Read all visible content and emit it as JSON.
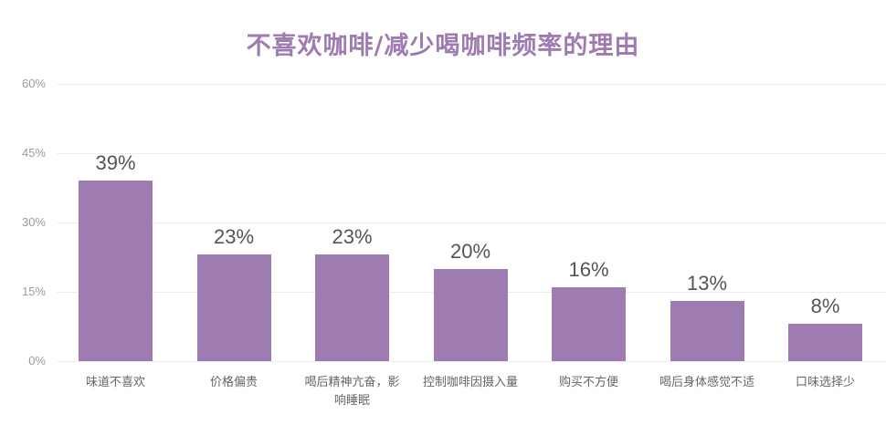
{
  "chart_data": {
    "type": "bar",
    "title": "不喜欢咖啡/减少喝咖啡频率的理由",
    "xlabel": "",
    "ylabel": "",
    "ylim": [
      0,
      60
    ],
    "yticks": [
      "0%",
      "15%",
      "30%",
      "45%",
      "60%"
    ],
    "grid": true,
    "legend": "none",
    "categories": [
      "味道不喜欢",
      "价格偏贵",
      "喝后精神亢奋，影响睡眠",
      "控制咖啡因摄入量",
      "购买不方便",
      "喝后身体感觉不适",
      "口味选择少"
    ],
    "values": [
      39,
      23,
      23,
      20,
      16,
      13,
      8
    ],
    "value_labels": [
      "39%",
      "23%",
      "23%",
      "20%",
      "16%",
      "13%",
      "8%"
    ],
    "bar_color": "#9e7bb0"
  },
  "x_label_lines": [
    [
      "味道不喜欢"
    ],
    [
      "价格偏贵"
    ],
    [
      "喝后精神亢奋，影",
      "响睡眠"
    ],
    [
      "控制咖啡因摄入量"
    ],
    [
      "购买不方便"
    ],
    [
      "喝后身体感觉不适"
    ],
    [
      "口味选择少"
    ]
  ]
}
